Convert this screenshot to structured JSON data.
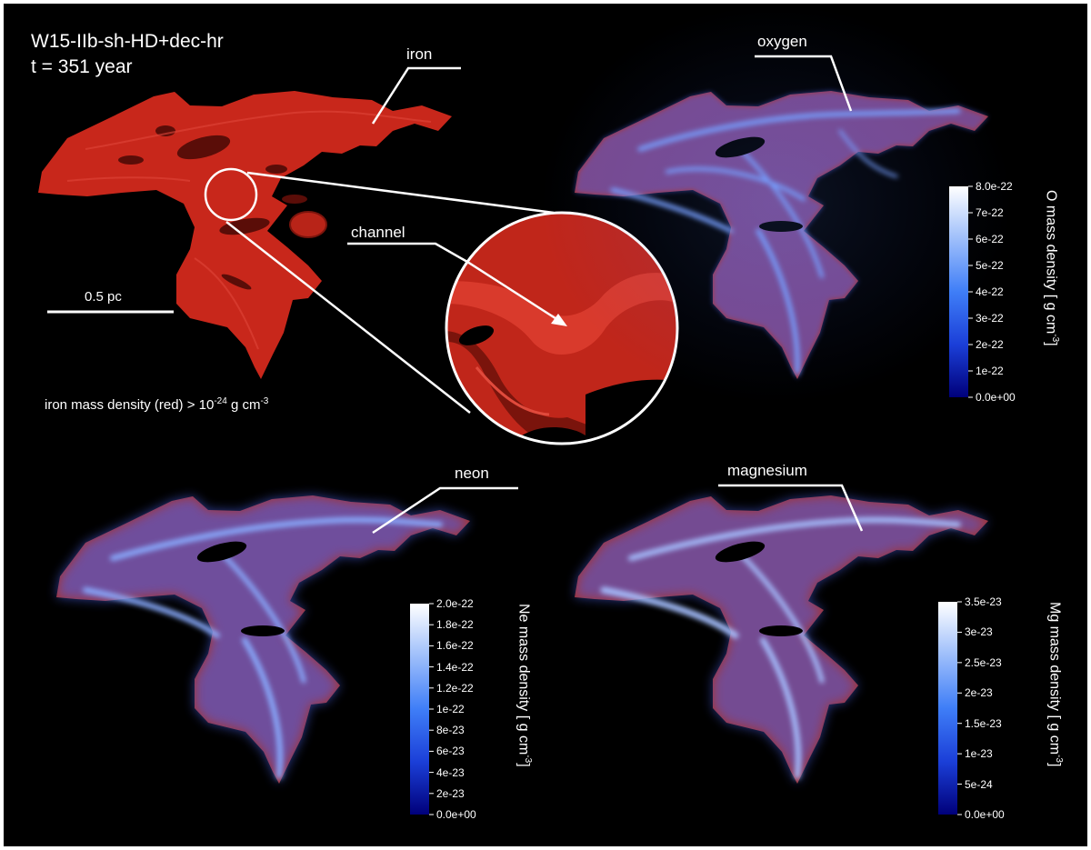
{
  "header": {
    "model_name": "W15-IIb-sh-HD+dec-hr",
    "time_label": "t = 351 year"
  },
  "scale_bar": {
    "label": "0.5 pc"
  },
  "iron_panel": {
    "callout": "iron",
    "zoom_callout": "channel",
    "threshold_prefix": "iron mass density (red) > 10",
    "threshold_exponent": "-24",
    "threshold_unit_prefix": " g cm",
    "threshold_unit_exponent": "-3",
    "colors": {
      "iron": "#c8271b"
    }
  },
  "panels": {
    "oxygen": {
      "callout": "oxygen",
      "colorbar_title_prefix": "O mass density [ g cm",
      "colorbar_title_exponent": "-3",
      "colorbar_title_suffix": "]",
      "colorbar_ticks": [
        "8.0e-22",
        "7e-22",
        "6e-22",
        "5e-22",
        "4e-22",
        "3e-22",
        "2e-22",
        "1e-22",
        "0.0e+00"
      ]
    },
    "neon": {
      "callout": "neon",
      "colorbar_title_prefix": "Ne mass density [ g cm",
      "colorbar_title_exponent": "-3",
      "colorbar_title_suffix": "]",
      "colorbar_ticks": [
        "2.0e-22",
        "1.8e-22",
        "1.6e-22",
        "1.4e-22",
        "1.2e-22",
        "1e-22",
        "8e-23",
        "6e-23",
        "4e-23",
        "2e-23",
        "0.0e+00"
      ]
    },
    "magnesium": {
      "callout": "magnesium",
      "colorbar_title_prefix": "Mg mass density [ g cm",
      "colorbar_title_exponent": "-3",
      "colorbar_title_suffix": "]",
      "colorbar_ticks": [
        "3.5e-23",
        "3e-23",
        "2.5e-23",
        "2e-23",
        "1.5e-23",
        "1e-23",
        "5e-24",
        "0.0e+00"
      ]
    }
  },
  "colormap": {
    "low": "#00007a",
    "mid": "#2f6ef5",
    "high": "#ffffff"
  }
}
